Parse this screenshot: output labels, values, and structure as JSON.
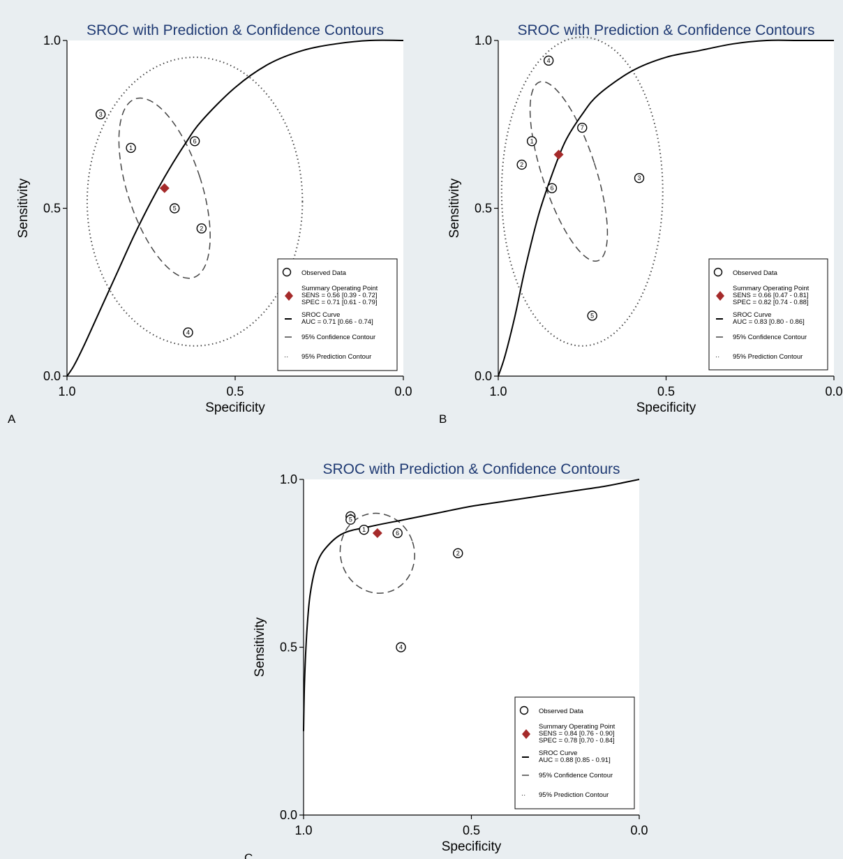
{
  "colors": {
    "background": "#e9eef1",
    "plot_background": "#ffffff",
    "title": "#1f3a73",
    "summary_point": "#a52a2a"
  },
  "chart_data": [
    {
      "panel": "A",
      "type": "line",
      "title": "SROC with Prediction & Confidence Contours",
      "xlabel": "Specificity",
      "ylabel": "Sensitivity",
      "xlim": [
        1.0,
        0.0
      ],
      "ylim": [
        0.0,
        1.0
      ],
      "x_ticks": [
        "1.0",
        "0.5",
        "0.0"
      ],
      "y_ticks": [
        "0.0",
        "0.5",
        "1.0"
      ],
      "sroc_fpr_points": [
        [
          0,
          0
        ],
        [
          0.02,
          0.03
        ],
        [
          0.05,
          0.09
        ],
        [
          0.1,
          0.2
        ],
        [
          0.15,
          0.31
        ],
        [
          0.2,
          0.42
        ],
        [
          0.25,
          0.52
        ],
        [
          0.3,
          0.61
        ],
        [
          0.35,
          0.69
        ],
        [
          0.4,
          0.76
        ],
        [
          0.5,
          0.86
        ],
        [
          0.6,
          0.93
        ],
        [
          0.7,
          0.97
        ],
        [
          0.8,
          0.99
        ],
        [
          0.9,
          1.0
        ],
        [
          1.0,
          1.0
        ]
      ],
      "observed": [
        {
          "id": "3",
          "spec": 0.9,
          "sens": 0.78
        },
        {
          "id": "1",
          "spec": 0.81,
          "sens": 0.68
        },
        {
          "id": "6",
          "spec": 0.62,
          "sens": 0.7
        },
        {
          "id": "5",
          "spec": 0.68,
          "sens": 0.5
        },
        {
          "id": "2",
          "spec": 0.6,
          "sens": 0.44
        },
        {
          "id": "4",
          "spec": 0.64,
          "sens": 0.13
        }
      ],
      "summary": {
        "spec": 0.71,
        "sens": 0.56
      },
      "confidence_contour": {
        "spec": 0.71,
        "sens": 0.56,
        "spec_r": 0.11,
        "sens_r": 0.28
      },
      "prediction_contour": {
        "spec": 0.62,
        "sens": 0.52,
        "spec_r": 0.32,
        "sens_r": 0.43
      },
      "legend": {
        "observed": "Observed Data",
        "summary_title": "Summary Operating Point",
        "sens": "SENS = 0.56 [0.39 - 0.72]",
        "spec": "SPEC = 0.71 [0.61 - 0.79]",
        "curve": "SROC Curve",
        "auc": "AUC = 0.71 [0.66 - 0.74]",
        "conf": "95% Confidence Contour",
        "pred": "95% Prediction Contour"
      }
    },
    {
      "panel": "B",
      "type": "line",
      "title": "SROC with Prediction & Confidence Contours",
      "xlabel": "Specificity",
      "ylabel": "Sensitivity",
      "xlim": [
        1.0,
        0.0
      ],
      "ylim": [
        0.0,
        1.0
      ],
      "x_ticks": [
        "1.0",
        "0.5",
        "0.0"
      ],
      "y_ticks": [
        "0.0",
        "0.5",
        "1.0"
      ],
      "sroc_fpr_points": [
        [
          0,
          0
        ],
        [
          0.02,
          0.06
        ],
        [
          0.05,
          0.18
        ],
        [
          0.08,
          0.32
        ],
        [
          0.12,
          0.48
        ],
        [
          0.16,
          0.6
        ],
        [
          0.2,
          0.7
        ],
        [
          0.25,
          0.78
        ],
        [
          0.3,
          0.84
        ],
        [
          0.4,
          0.91
        ],
        [
          0.5,
          0.95
        ],
        [
          0.6,
          0.97
        ],
        [
          0.7,
          0.99
        ],
        [
          0.8,
          1.0
        ],
        [
          0.9,
          1.0
        ],
        [
          1.0,
          1.0
        ]
      ],
      "observed": [
        {
          "id": "4",
          "spec": 0.85,
          "sens": 0.94
        },
        {
          "id": "7",
          "spec": 0.75,
          "sens": 0.74
        },
        {
          "id": "1",
          "spec": 0.9,
          "sens": 0.7
        },
        {
          "id": "2",
          "spec": 0.93,
          "sens": 0.63
        },
        {
          "id": "6",
          "spec": 0.84,
          "sens": 0.56
        },
        {
          "id": "3",
          "spec": 0.58,
          "sens": 0.59
        },
        {
          "id": "5",
          "spec": 0.72,
          "sens": 0.18
        }
      ],
      "summary": {
        "spec": 0.82,
        "sens": 0.66
      },
      "confidence_contour": {
        "spec": 0.79,
        "sens": 0.61,
        "spec_r": 0.08,
        "sens_r": 0.28
      },
      "prediction_contour": {
        "spec": 0.75,
        "sens": 0.55,
        "spec_r": 0.24,
        "sens_r": 0.46
      },
      "legend": {
        "observed": "Observed Data",
        "summary_title": "Summary Operating Point",
        "sens": "SENS = 0.66 [0.47 - 0.81]",
        "spec": "SPEC = 0.82 [0.74 - 0.88]",
        "curve": "SROC Curve",
        "auc": "AUC = 0.83 [0.80 - 0.86]",
        "conf": "95% Confidence Contour",
        "pred": "95% Prediction Contour"
      }
    },
    {
      "panel": "C",
      "type": "line",
      "title": "SROC with Prediction & Confidence Contours",
      "xlabel": "Specificity",
      "ylabel": "Sensitivity",
      "xlim": [
        1.0,
        0.0
      ],
      "ylim": [
        0.0,
        1.0
      ],
      "x_ticks": [
        "1.0",
        "0.5",
        "0.0"
      ],
      "y_ticks": [
        "0.0",
        "0.5",
        "1.0"
      ],
      "sroc_fpr_points": [
        [
          0,
          0.25
        ],
        [
          0.003,
          0.4
        ],
        [
          0.01,
          0.55
        ],
        [
          0.02,
          0.66
        ],
        [
          0.04,
          0.75
        ],
        [
          0.07,
          0.8
        ],
        [
          0.12,
          0.84
        ],
        [
          0.2,
          0.86
        ],
        [
          0.3,
          0.88
        ],
        [
          0.4,
          0.9
        ],
        [
          0.5,
          0.92
        ],
        [
          0.6,
          0.935
        ],
        [
          0.7,
          0.95
        ],
        [
          0.8,
          0.965
        ],
        [
          0.9,
          0.98
        ],
        [
          1.0,
          1.0
        ]
      ],
      "observed": [
        {
          "id": "3",
          "spec": 0.86,
          "sens": 0.89
        },
        {
          "id": "5",
          "spec": 0.86,
          "sens": 0.88
        },
        {
          "id": "1",
          "spec": 0.82,
          "sens": 0.85
        },
        {
          "id": "6",
          "spec": 0.72,
          "sens": 0.84
        },
        {
          "id": "2",
          "spec": 0.54,
          "sens": 0.78
        },
        {
          "id": "4",
          "spec": 0.71,
          "sens": 0.5
        }
      ],
      "summary": {
        "spec": 0.78,
        "sens": 0.84
      },
      "confidence_contour": {
        "spec": 0.78,
        "sens": 0.78,
        "spec_r": 0.11,
        "sens_r": 0.12
      },
      "legend": {
        "observed": "Observed Data",
        "summary_title": "Summary Operating Point",
        "sens": "SENS = 0.84 [0.76 - 0.90]",
        "spec": "SPEC = 0.78 [0.70 - 0.84]",
        "curve": "SROC Curve",
        "auc": "AUC = 0.88 [0.85 - 0.91]",
        "conf": "95% Confidence Contour",
        "pred": "95% Prediction Contour"
      }
    }
  ]
}
